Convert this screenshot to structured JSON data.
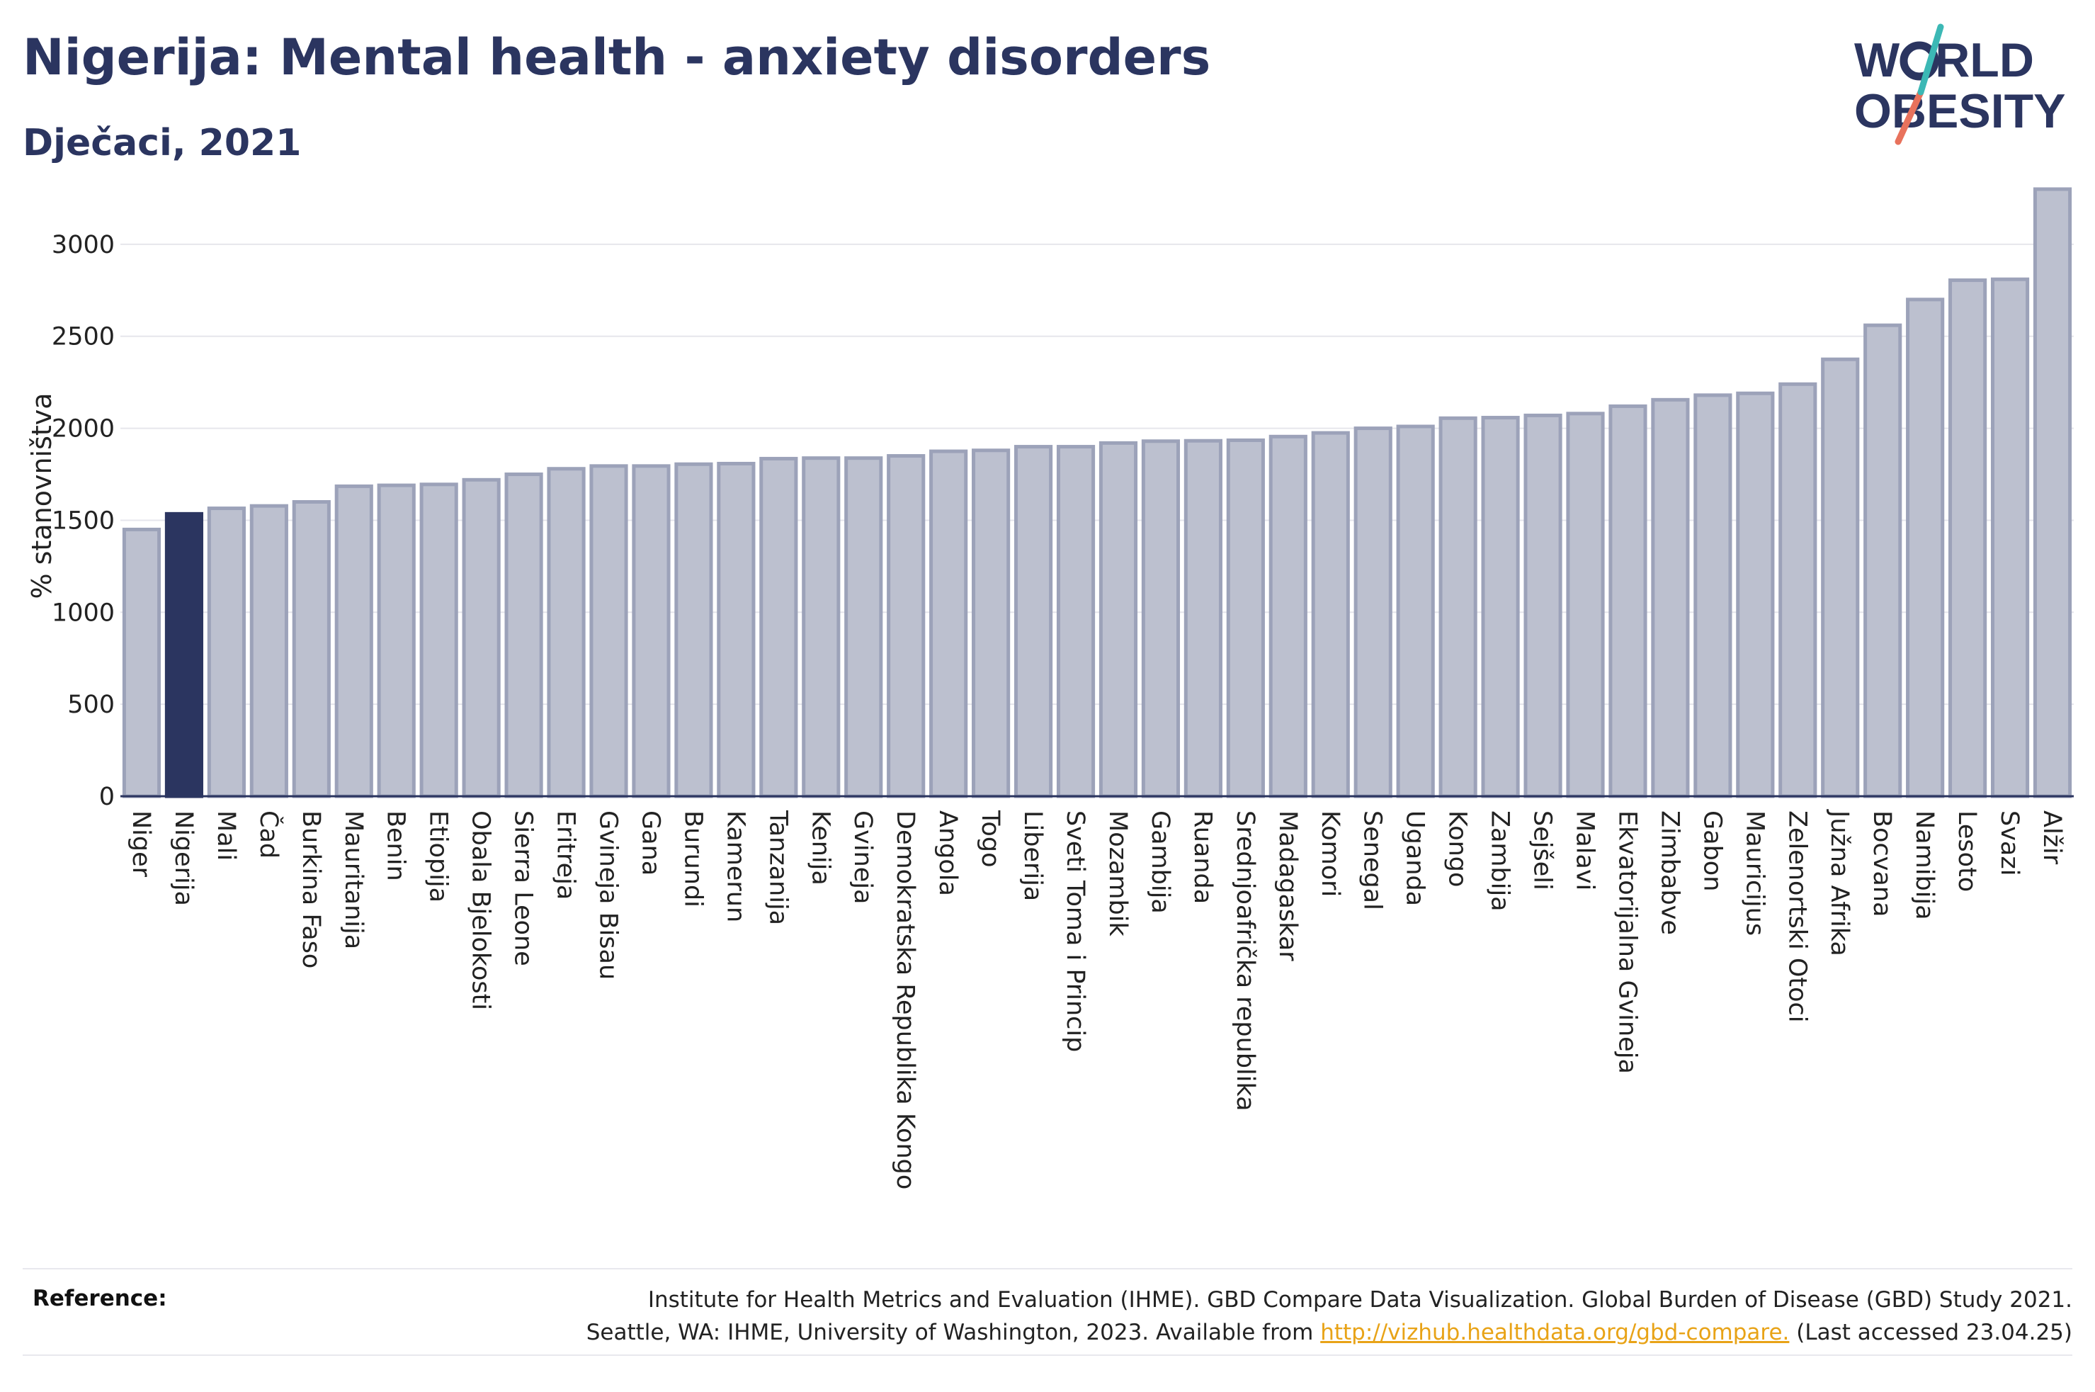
{
  "title": "Nigerija: Mental health - anxiety disorders",
  "subtitle": "Dječaci, 2021",
  "logo": {
    "line1": "W",
    "line1b": "RLD",
    "line2": "OBESITY"
  },
  "colors": {
    "highlight": "#2b3560",
    "bar": "#bcc0cf",
    "bar_stroke": "#9ca2b9",
    "text": "#2b3560",
    "link": "#e8a317"
  },
  "reference": {
    "label": "Reference:",
    "line1": "Institute for Health Metrics and Evaluation (IHME). GBD Compare Data Visualization. Global Burden of Disease (GBD) Study 2021.",
    "line2_pre": "Seattle, WA: IHME, University of Washington, 2023. Available from ",
    "link": "http://vizhub.healthdata.org/gbd-compare.",
    "line2_post": " (Last accessed 23.04.25)"
  },
  "chart_data": {
    "type": "bar",
    "ylabel": "% stanovništva",
    "ylim": [
      0,
      3350
    ],
    "yticks": [
      0,
      500,
      1000,
      1500,
      2000,
      2500,
      3000
    ],
    "grid": true,
    "highlight": "Nigerija",
    "categories": [
      "Niger",
      "Nigerija",
      "Mali",
      "Čad",
      "Burkina Faso",
      "Mauritanija",
      "Benin",
      "Etiopija",
      "Obala Bjelokosti",
      "Sierra Leone",
      "Eritreja",
      "Gvineja Bisau",
      "Gana",
      "Burundi",
      "Kamerun",
      "Tanzanija",
      "Kenija",
      "Gvineja",
      "Demokratska Republika Kongo",
      "Angola",
      "Togo",
      "Liberija",
      "Sveti Toma i Princip",
      "Mozambik",
      "Gambija",
      "Ruanda",
      "Srednjoafrička republika",
      "Madagaskar",
      "Komori",
      "Senegal",
      "Uganda",
      "Kongo",
      "Zambija",
      "Sejšeli",
      "Malavi",
      "Ekvatorijalna Gvineja",
      "Zimbabve",
      "Gabon",
      "Mauricijus",
      "Zelenortski Otoci",
      "Južna Afrika",
      "Bocvana",
      "Namibija",
      "Lesoto",
      "Svazi",
      "Alžir"
    ],
    "values": [
      1450,
      1535,
      1565,
      1578,
      1600,
      1685,
      1690,
      1695,
      1720,
      1750,
      1780,
      1795,
      1795,
      1805,
      1808,
      1835,
      1838,
      1838,
      1850,
      1875,
      1880,
      1900,
      1900,
      1920,
      1930,
      1932,
      1935,
      1955,
      1975,
      2000,
      2010,
      2055,
      2058,
      2070,
      2080,
      2120,
      2155,
      2180,
      2190,
      2240,
      2375,
      2560,
      2700,
      2805,
      2810,
      3300
    ]
  }
}
